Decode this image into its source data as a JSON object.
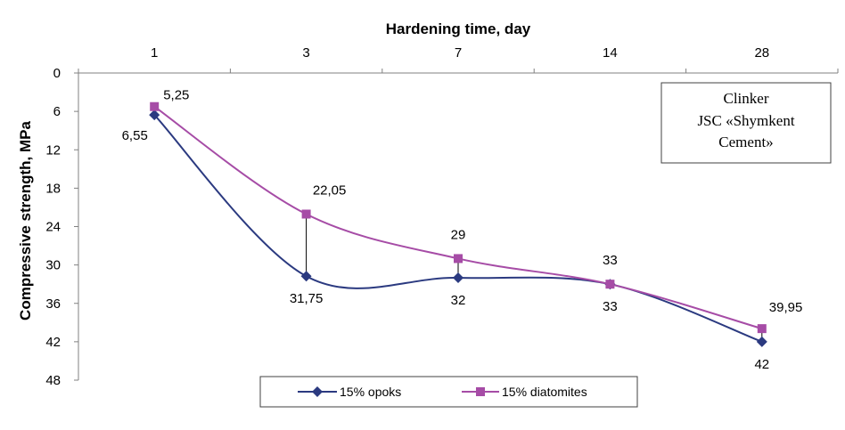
{
  "chart_data": {
    "type": "line",
    "xlabel": "Hardening time, day",
    "ylabel": "Compressive strength, MPa",
    "categories": [
      "1",
      "3",
      "7",
      "14",
      "28"
    ],
    "ylim": [
      0,
      48
    ],
    "y_inverted": true,
    "y_ticks": [
      "0",
      "6",
      "12",
      "18",
      "24",
      "30",
      "36",
      "42",
      "48"
    ],
    "x_axis_position": "top",
    "grid": false,
    "legend_position": "bottom",
    "series": [
      {
        "name": "15% opoks",
        "color": "#2b3a80",
        "marker": "diamond",
        "values": [
          6.55,
          31.75,
          32,
          33,
          42
        ],
        "labels": [
          "6,55",
          "31,75",
          "32",
          "33",
          "42"
        ]
      },
      {
        "name": "15% diatomites",
        "color": "#a64ca6",
        "marker": "square",
        "values": [
          5.25,
          22.05,
          29,
          33,
          39.95
        ],
        "labels": [
          "5,25",
          "22,05",
          "29",
          "33",
          "39,95"
        ]
      }
    ],
    "annotation": [
      "Clinker",
      "JSC «Shymkent",
      "Cement»"
    ]
  }
}
